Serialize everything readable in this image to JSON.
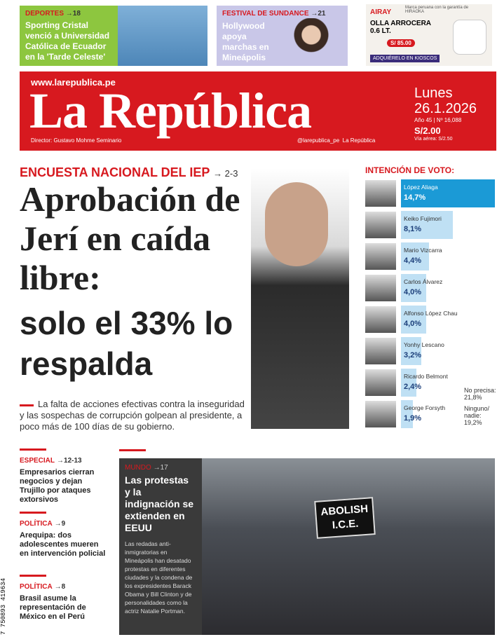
{
  "teasers": [
    {
      "section": "DEPORTES",
      "page": "→18",
      "text": "Sporting Cristal venció a Universidad Católica de Ecuador en la 'Tarde Celeste'"
    },
    {
      "section": "FESTIVAL DE SUNDANCE",
      "page": "→21",
      "text": "Hollywood apoya marchas en Mineápolis"
    }
  ],
  "ad": {
    "brand": "AIRAY",
    "tagline": "Marca peruana con la garantía de HIRAOKA",
    "product": "OLLA ARROCERA 0.6 LT.",
    "price": "S/ 85.00",
    "cta": "ADQUIÉRELO EN KIOSCOS"
  },
  "masthead": {
    "url": "www.larepublica.pe",
    "name": "La República",
    "day": "Lunes",
    "date": "26.1.2026",
    "issue": "Año 45 | Nº 16,088",
    "price": "S/2.00",
    "airmail": "Vía aérea: S/2.50",
    "director": "Director: Gustavo Mohme Seminario",
    "twitter": "@larepublica_pe",
    "facebook": "La República"
  },
  "lead": {
    "kicker": "ENCUESTA NACIONAL DEL IEP",
    "page": "→ 2-3",
    "headline_serif": "Aprobación de Jerí en caída libre:",
    "headline_sans": "solo el 33% lo respalda",
    "deck": "La falta de acciones efectivas contra la inseguridad y las sospechas de corrupción golpean al presidente, a poco más de 100 días de su gobierno."
  },
  "poll": {
    "title": "INTENCIÓN DE VOTO:",
    "max": 14.7,
    "rows": [
      {
        "name": "López Aliaga",
        "value": 14.7,
        "label": "14,7%"
      },
      {
        "name": "Keiko Fujimori",
        "value": 8.1,
        "label": "8,1%"
      },
      {
        "name": "Mario Vizcarra",
        "value": 4.4,
        "label": "4,4%"
      },
      {
        "name": "Carlos Álvarez",
        "value": 4.0,
        "label": "4,0%"
      },
      {
        "name": "Alfonso López Chau",
        "value": 4.0,
        "label": "4,0%"
      },
      {
        "name": "Yonhy Lescano",
        "value": 3.2,
        "label": "3,2%"
      },
      {
        "name": "Ricardo Belmont",
        "value": 2.4,
        "label": "2,4%"
      },
      {
        "name": "George Forsyth",
        "value": 1.9,
        "label": "1,9%"
      }
    ],
    "others": [
      {
        "name": "No precisa:",
        "label": "21,8%"
      },
      {
        "name": "Ninguno/ nadie:",
        "label": "19,2%"
      }
    ]
  },
  "briefs": [
    {
      "section": "ESPECIAL",
      "page": "→12-13",
      "text": "Empresarios cierran negocios y dejan Trujillo por ataques extorsivos"
    },
    {
      "section": "POLÍTICA",
      "page": "→9",
      "text": "Arequipa: dos adolescentes mueren en intervención policial"
    },
    {
      "section": "POLÍTICA",
      "page": "→8",
      "text": "Brasil asume la representación de México en el Perú"
    }
  ],
  "world": {
    "section": "MUNDO",
    "page": "→17",
    "headline": "Las protestas y la indignación se extienden en EEUU",
    "body": "Las redadas anti-inmigratorias en Mineápolis han desatado protestas en diferentes ciudades y la condena de los expresidentes Barack Obama y Bill Clinton y de personalidades como la actriz Natalie Portman.",
    "sign": "ABOLISH I.C.E."
  },
  "barcode": "7 750893 419634"
}
